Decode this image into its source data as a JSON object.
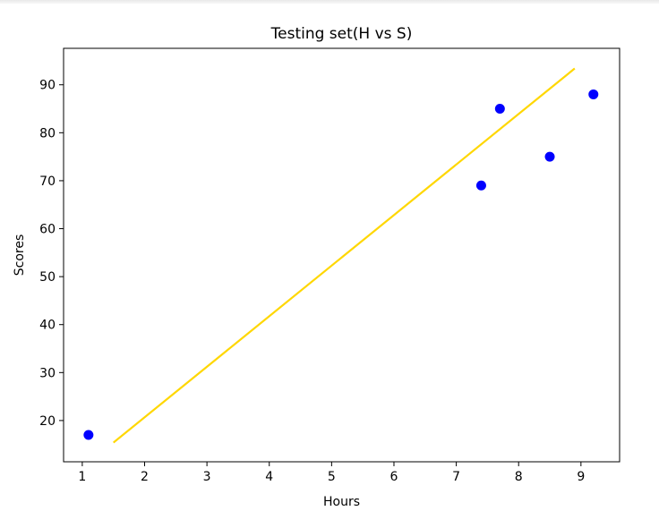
{
  "chart_data": {
    "type": "scatter",
    "title": "Testing set(H vs S)",
    "xlabel": "Hours",
    "ylabel": "Scores",
    "xlim": [
      0.7,
      9.62
    ],
    "ylim": [
      11.4,
      97.6
    ],
    "xticks": [
      1,
      2,
      3,
      4,
      5,
      6,
      7,
      8,
      9
    ],
    "yticks": [
      20,
      30,
      40,
      50,
      60,
      70,
      80,
      90
    ],
    "grid": false,
    "series": [
      {
        "type": "scatter",
        "color": "#0000ff",
        "points": [
          {
            "x": 1.1,
            "y": 17
          },
          {
            "x": 7.4,
            "y": 69
          },
          {
            "x": 7.7,
            "y": 85
          },
          {
            "x": 8.5,
            "y": 75
          },
          {
            "x": 9.2,
            "y": 88
          }
        ]
      },
      {
        "type": "line",
        "color": "#ffd700",
        "points": [
          {
            "x": 1.5,
            "y": 15.4
          },
          {
            "x": 8.9,
            "y": 93.4
          }
        ]
      }
    ]
  }
}
